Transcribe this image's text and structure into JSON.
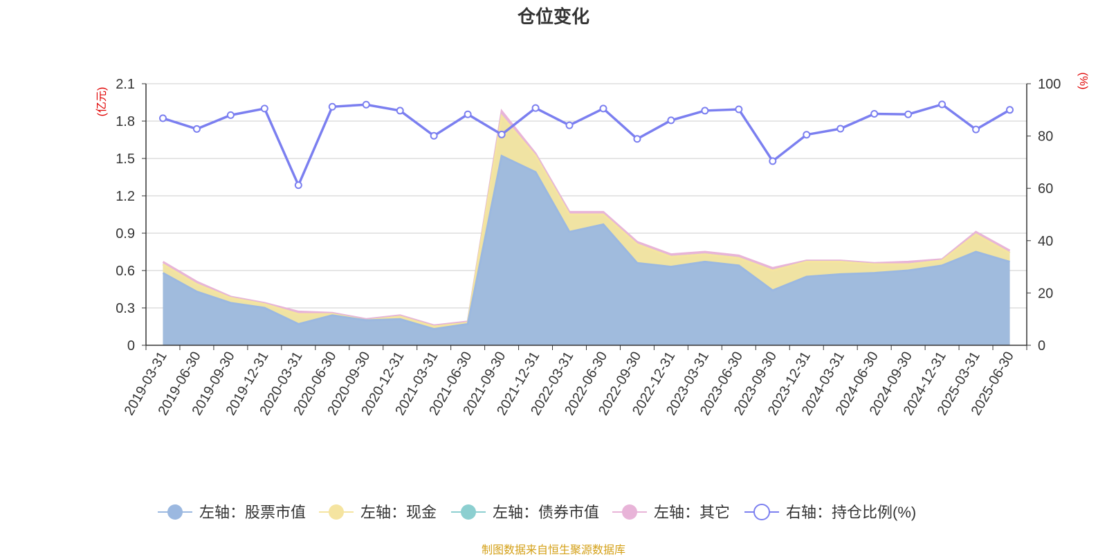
{
  "chart_data": {
    "type": "area",
    "title": "仓位变化",
    "left_axis_unit": "(亿元)",
    "right_axis_unit": "(%)",
    "source": "制图数据来自恒生聚源数据库",
    "y_left": {
      "min": 0,
      "max": 2.1,
      "ticks": [
        "0",
        "0.3",
        "0.6",
        "0.9",
        "1.2",
        "1.5",
        "1.8",
        "2.1"
      ]
    },
    "y_right": {
      "min": 0,
      "max": 100,
      "ticks": [
        "0",
        "20",
        "40",
        "60",
        "80",
        "100"
      ]
    },
    "grid": true,
    "legend_position": "bottom",
    "categories": [
      "2019-03-31",
      "2019-06-30",
      "2019-09-30",
      "2019-12-31",
      "2020-03-31",
      "2020-06-30",
      "2020-09-30",
      "2020-12-31",
      "2021-03-31",
      "2021-06-30",
      "2021-09-30",
      "2021-12-31",
      "2022-03-31",
      "2022-06-30",
      "2022-09-30",
      "2022-12-31",
      "2023-03-31",
      "2023-06-30",
      "2023-09-30",
      "2023-12-31",
      "2024-03-31",
      "2024-06-30",
      "2024-09-30",
      "2024-12-31",
      "2025-03-31",
      "2025-06-30"
    ],
    "series": [
      {
        "name": "左轴：股票市值",
        "axis": "left",
        "stack": "total",
        "type": "area",
        "color": "#9bb8e0",
        "values": [
          0.58,
          0.43,
          0.34,
          0.3,
          0.17,
          0.24,
          0.2,
          0.21,
          0.13,
          0.17,
          1.52,
          1.39,
          0.91,
          0.97,
          0.66,
          0.63,
          0.67,
          0.64,
          0.44,
          0.55,
          0.57,
          0.58,
          0.6,
          0.64,
          0.75,
          0.67
        ]
      },
      {
        "name": "左轴：现金",
        "axis": "left",
        "stack": "total",
        "type": "area",
        "color": "#f5e4a0",
        "values": [
          0.07,
          0.06,
          0.04,
          0.03,
          0.08,
          0.01,
          0.0,
          0.02,
          0.02,
          0.01,
          0.32,
          0.13,
          0.14,
          0.08,
          0.15,
          0.08,
          0.06,
          0.06,
          0.16,
          0.12,
          0.1,
          0.07,
          0.05,
          0.04,
          0.14,
          0.07
        ]
      },
      {
        "name": "左轴：债券市值",
        "axis": "left",
        "stack": "total",
        "type": "area",
        "color": "#8ccfd0",
        "values": [
          0,
          0,
          0,
          0,
          0,
          0,
          0,
          0,
          0,
          0,
          0,
          0,
          0,
          0,
          0,
          0,
          0,
          0,
          0,
          0,
          0,
          0,
          0,
          0,
          0,
          0
        ]
      },
      {
        "name": "左轴：其它",
        "axis": "left",
        "stack": "total",
        "type": "area",
        "color": "#e8b4d8",
        "values": [
          0.02,
          0.02,
          0.01,
          0.01,
          0.02,
          0.01,
          0.01,
          0.01,
          0.01,
          0.01,
          0.04,
          0.02,
          0.02,
          0.02,
          0.02,
          0.02,
          0.02,
          0.02,
          0.02,
          0.01,
          0.01,
          0.01,
          0.02,
          0.01,
          0.02,
          0.02
        ]
      },
      {
        "name": "右轴：持仓比例(%)",
        "axis": "right",
        "type": "line",
        "color": "#7b7ff0",
        "values": [
          86.8,
          82.7,
          88.0,
          90.5,
          61.2,
          91.2,
          92.0,
          89.7,
          80.1,
          88.3,
          80.6,
          90.7,
          84.1,
          90.5,
          78.9,
          86.0,
          89.7,
          90.2,
          70.4,
          80.5,
          82.8,
          88.5,
          88.3,
          92.1,
          82.5,
          90.0
        ]
      }
    ]
  }
}
